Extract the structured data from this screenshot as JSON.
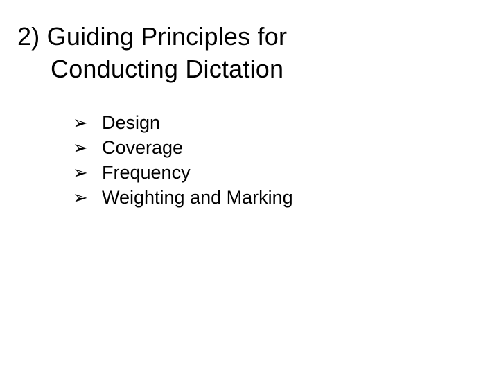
{
  "title": {
    "line1": "2) Guiding Principles for",
    "line2": "Conducting Dictation"
  },
  "bullets": {
    "marker": "➢",
    "items": [
      "Design",
      "Coverage",
      "Frequency",
      "Weighting and Marking"
    ]
  },
  "colors": {
    "background": "#ffffff",
    "text": "#000000"
  },
  "typography": {
    "title_fontsize": 36,
    "bullet_fontsize": 27,
    "font_family": "Arial"
  }
}
